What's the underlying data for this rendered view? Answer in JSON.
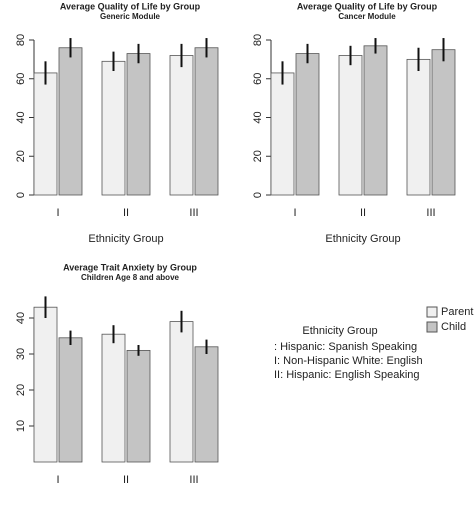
{
  "chart_data": [
    {
      "type": "bar",
      "title": "Average Quality of Life by Group",
      "subtitle": "Generic Module",
      "categories": [
        "I",
        "II",
        "III"
      ],
      "xlabel": "Ethnicity Group",
      "series": [
        {
          "color": "#f0f0f0",
          "values": [
            63,
            69,
            72
          ],
          "errors": [
            6,
            5,
            6
          ]
        },
        {
          "color": "#c4c4c4",
          "values": [
            76,
            73,
            76
          ],
          "errors": [
            5,
            5,
            5
          ]
        }
      ],
      "ylim": [
        0,
        84
      ],
      "yticks": [
        0,
        20,
        40,
        60,
        80
      ]
    },
    {
      "type": "bar",
      "title": "Average Quality of Life by Group",
      "subtitle": "Cancer Module",
      "categories": [
        "I",
        "II",
        "III"
      ],
      "xlabel": "Ethnicity Group",
      "series": [
        {
          "color": "#f0f0f0",
          "values": [
            63,
            72,
            70
          ],
          "errors": [
            6,
            5,
            6
          ]
        },
        {
          "color": "#c4c4c4",
          "values": [
            73,
            77,
            75
          ],
          "errors": [
            5,
            4,
            6
          ]
        }
      ],
      "ylim": [
        0,
        84
      ],
      "yticks": [
        0,
        20,
        40,
        60,
        80
      ]
    },
    {
      "type": "bar",
      "title": "Average Trait Anxiety by Group",
      "subtitle": "Children Age 8 and above",
      "categories": [
        "I",
        "II",
        "III"
      ],
      "xlabel": "Ethnicity Group",
      "series": [
        {
          "name": "Parent",
          "color": "#f0f0f0",
          "values": [
            43,
            35.5,
            39
          ],
          "errors": [
            3,
            2.5,
            3
          ]
        },
        {
          "name": "Child",
          "color": "#c4c4c4",
          "values": [
            34.5,
            31,
            32
          ],
          "errors": [
            2,
            1.5,
            2
          ]
        }
      ],
      "ylim": [
        0,
        45
      ],
      "yticks": [
        10,
        20,
        30,
        40
      ]
    }
  ],
  "key": {
    "title": "Ethnicity Group",
    "items": [
      ": Hispanic: Spanish Speaking",
      "I: Non-Hispanic White: English",
      "II: Hispanic: English Speaking"
    ]
  }
}
